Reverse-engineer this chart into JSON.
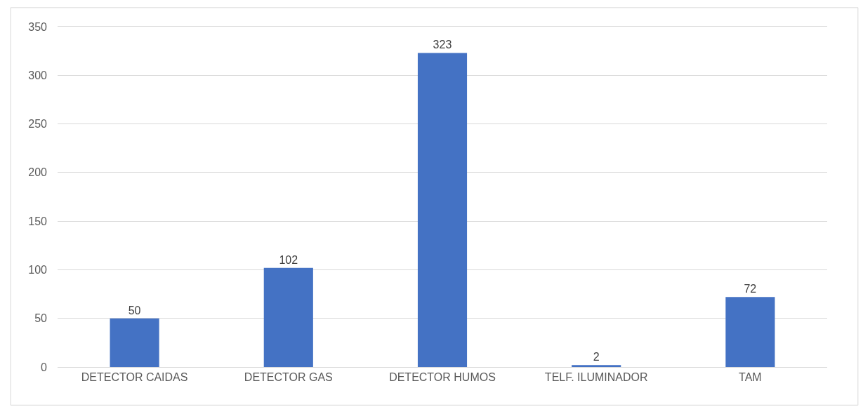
{
  "chart_data": {
    "type": "bar",
    "categories": [
      "DETECTOR CAIDAS",
      "DETECTOR GAS",
      "DETECTOR HUMOS",
      "TELF. ILUMINADOR",
      "TAM"
    ],
    "values": [
      50,
      102,
      323,
      2,
      72
    ],
    "color": "#4472c4",
    "ylim": [
      0,
      350
    ],
    "yticks": [
      0,
      50,
      100,
      150,
      200,
      250,
      300,
      350
    ],
    "grid": "y",
    "data_labels": true,
    "legend": false
  }
}
